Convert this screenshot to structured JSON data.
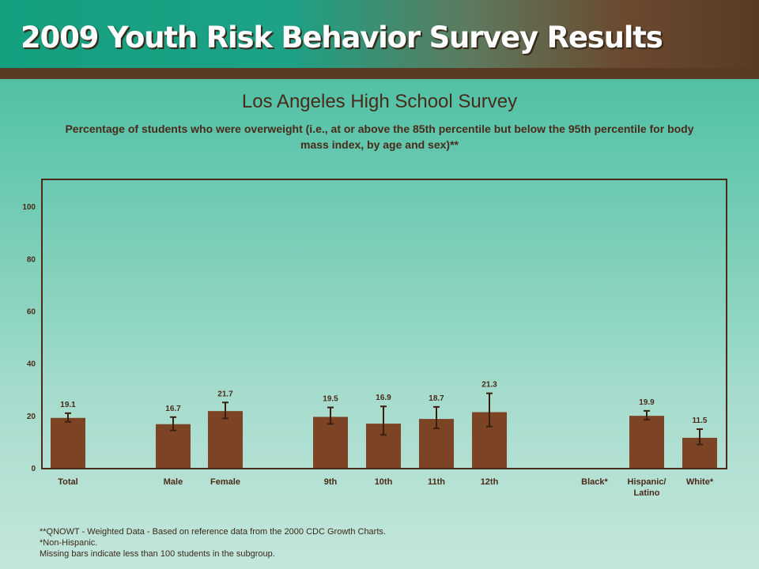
{
  "header": {
    "title": "2009 Youth Risk Behavior Survey Results"
  },
  "colors": {
    "bar": "#7c4424",
    "axis": "#4a2a18",
    "plot_bg": "#c4e6dc"
  },
  "chart_data": {
    "type": "bar",
    "title": "Los Angeles High School Survey",
    "subtitle": "Percentage of students who were overweight (i.e., at or above the 85th percentile but below the 95th percentile for body mass index, by age and sex)**",
    "categories": [
      "Total",
      "Male",
      "Female",
      "9th",
      "10th",
      "11th",
      "12th",
      "Black*",
      "Hispanic/\nLatino",
      "White*"
    ],
    "values": [
      19.1,
      16.7,
      21.7,
      19.5,
      16.9,
      18.7,
      21.3,
      null,
      19.9,
      11.5
    ],
    "value_labels": [
      "19.1",
      "16.7",
      "21.7",
      "19.5",
      "16.9",
      "18.7",
      "21.3",
      "",
      "19.9",
      "11.5"
    ],
    "ci_low": [
      17.6,
      14.3,
      18.9,
      16.8,
      12.6,
      15.1,
      15.8,
      null,
      18.4,
      8.9
    ],
    "ci_high": [
      20.9,
      19.4,
      25.0,
      23.1,
      23.5,
      23.3,
      28.5,
      null,
      21.8,
      14.8
    ],
    "ylim": [
      0,
      110
    ],
    "yticks": [
      "0",
      "20",
      "40",
      "60",
      "80",
      "100"
    ],
    "xlabel": "",
    "ylabel": "",
    "grid": false
  },
  "footnotes": [
    "**QNOWT - Weighted Data - Based on reference data from the 2000 CDC Growth Charts.",
    "*Non-Hispanic.",
    "Missing bars indicate less than 100 students in the subgroup."
  ]
}
